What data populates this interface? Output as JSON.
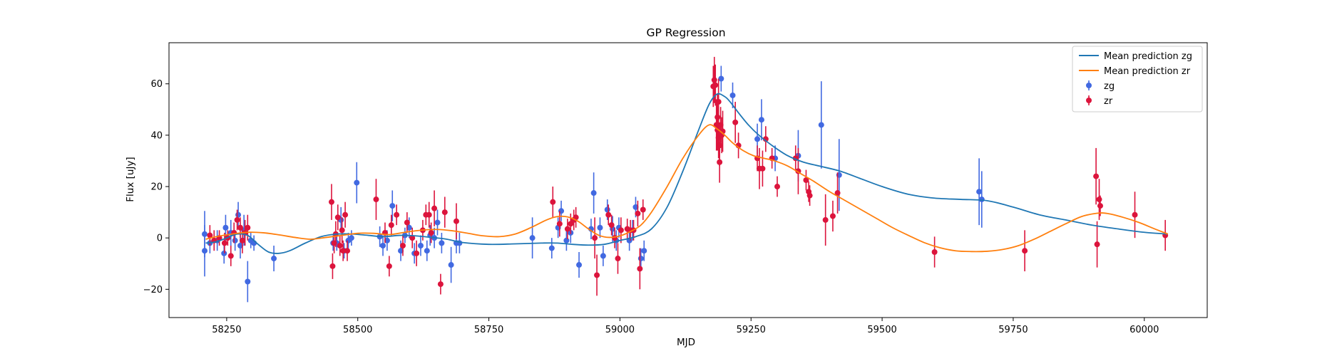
{
  "chart_data": {
    "type": "scatter",
    "title": "GP Regression",
    "xlabel": "MJD",
    "ylabel": "Flux [uJy]",
    "xlim": [
      58140,
      60120
    ],
    "ylim": [
      -31,
      76
    ],
    "xticks": [
      58250,
      58500,
      58750,
      59000,
      59250,
      59500,
      59750,
      60000
    ],
    "yticks": [
      -20,
      0,
      20,
      40,
      60
    ],
    "grid": false,
    "legend_position": "top-right",
    "legend": [
      {
        "label": "Mean prediction zg",
        "kind": "line",
        "color": "#1f77b4"
      },
      {
        "label": "Mean prediction zr",
        "kind": "line",
        "color": "#ff7f0e"
      },
      {
        "label": "zg",
        "kind": "errorbar",
        "color": "#4169e1"
      },
      {
        "label": "zr",
        "kind": "errorbar",
        "color": "#dc143c"
      }
    ],
    "lines": [
      {
        "name": "Mean prediction zg",
        "color": "#1f77b4",
        "x": [
          58210,
          58230,
          58250,
          58270,
          58290,
          58310,
          58330,
          58350,
          58370,
          58400,
          58430,
          58460,
          58490,
          58520,
          58550,
          58580,
          58610,
          58640,
          58670,
          58700,
          58750,
          58800,
          58850,
          58880,
          58910,
          58940,
          58970,
          59000,
          59030,
          59060,
          59090,
          59120,
          59150,
          59170,
          59185,
          59200,
          59210,
          59225,
          59245,
          59265,
          59290,
          59320,
          59350,
          59380,
          59420,
          59460,
          59500,
          59550,
          59600,
          59650,
          59700,
          59750,
          59800,
          59850,
          59900,
          59950,
          60000,
          60045
        ],
        "y": [
          -2,
          -1.5,
          0,
          1.5,
          1,
          -2.5,
          -5.5,
          -6,
          -5,
          -2,
          0.5,
          1.5,
          1.5,
          1,
          0.5,
          1,
          0.8,
          0.2,
          -0.5,
          -1.8,
          -2.5,
          -2.3,
          -2,
          -2,
          -2.5,
          -2.8,
          -2.5,
          -1,
          0.5,
          3.5,
          12,
          26,
          42,
          52,
          56,
          55,
          53,
          49,
          44,
          40,
          36,
          32,
          29.5,
          28,
          26,
          23,
          20,
          17,
          15.5,
          15,
          14.5,
          12,
          9,
          7,
          5,
          3.5,
          2.2,
          1.5
        ]
      },
      {
        "name": "Mean prediction zr",
        "color": "#ff7f0e",
        "x": [
          58210,
          58230,
          58260,
          58290,
          58320,
          58350,
          58380,
          58410,
          58440,
          58470,
          58500,
          58530,
          58560,
          58590,
          58620,
          58650,
          58680,
          58710,
          58740,
          58770,
          58800,
          58830,
          58860,
          58880,
          58900,
          58920,
          58940,
          58960,
          58980,
          59000,
          59020,
          59040,
          59060,
          59090,
          59120,
          59150,
          59170,
          59185,
          59200,
          59215,
          59235,
          59255,
          59275,
          59295,
          59320,
          59345,
          59370,
          59400,
          59430,
          59460,
          59490,
          59520,
          59550,
          59580,
          59610,
          59640,
          59670,
          59700,
          59730,
          59760,
          59790,
          59820,
          59850,
          59880,
          59910,
          59930,
          59960,
          59990,
          60020,
          60045
        ],
        "y": [
          -0.5,
          0.5,
          1.5,
          2.2,
          2,
          1.2,
          0.2,
          -0.5,
          0.2,
          1,
          1.8,
          1.8,
          1.3,
          2.2,
          3,
          3.3,
          2.8,
          1.8,
          0.8,
          0.5,
          1.5,
          4,
          7,
          8.3,
          8.2,
          6.5,
          3.5,
          1,
          0.2,
          0.8,
          2.5,
          5,
          10,
          20,
          31,
          40,
          44,
          42.5,
          40,
          37,
          34,
          32,
          31,
          30,
          28,
          25,
          22,
          18,
          14.5,
          11,
          7.5,
          4,
          1,
          -1.8,
          -3.8,
          -5,
          -5.3,
          -5.2,
          -4.5,
          -3,
          -0.5,
          2.5,
          5.5,
          8.3,
          9.6,
          9.5,
          8,
          6,
          3.5,
          1.5
        ]
      }
    ],
    "series": [
      {
        "name": "zg",
        "color": "#4169e1",
        "points": [
          [
            58208,
            1.5,
            9
          ],
          [
            58208,
            -5,
            10
          ],
          [
            58218,
            -2,
            4
          ],
          [
            58232,
            -1,
            4
          ],
          [
            58245,
            -6,
            4
          ],
          [
            58248,
            4,
            5
          ],
          [
            58258,
            2,
            5
          ],
          [
            58266,
            -1,
            4
          ],
          [
            58272,
            9,
            5
          ],
          [
            58276,
            -3,
            5
          ],
          [
            58283,
            3,
            6
          ],
          [
            58290,
            -17,
            8
          ],
          [
            58296,
            -1,
            3
          ],
          [
            58302,
            -2,
            3
          ],
          [
            58340,
            -8,
            5
          ],
          [
            58453,
            -2,
            3
          ],
          [
            58460,
            -2,
            3
          ],
          [
            58468,
            7,
            5
          ],
          [
            58474,
            -5,
            3
          ],
          [
            58482,
            -1,
            3
          ],
          [
            58488,
            0,
            3
          ],
          [
            58498,
            21.5,
            8
          ],
          [
            58542,
            0.5,
            4
          ],
          [
            58548,
            -3,
            4
          ],
          [
            58556,
            -1,
            4
          ],
          [
            58566,
            12.5,
            6
          ],
          [
            58582,
            -5,
            4
          ],
          [
            58590,
            1,
            3
          ],
          [
            58598,
            4,
            4
          ],
          [
            58608,
            -6,
            4
          ],
          [
            58620,
            -3,
            4
          ],
          [
            58632,
            -5,
            4
          ],
          [
            58638,
            1,
            4
          ],
          [
            58646,
            0,
            4
          ],
          [
            58652,
            6,
            5
          ],
          [
            58660,
            -2,
            4
          ],
          [
            58678,
            -10.5,
            7
          ],
          [
            58688,
            -2,
            4
          ],
          [
            58694,
            -2,
            4
          ],
          [
            58833,
            0,
            8
          ],
          [
            58870,
            -4,
            4
          ],
          [
            58882,
            4,
            4
          ],
          [
            58888,
            10.5,
            4
          ],
          [
            58898,
            -1,
            4
          ],
          [
            58906,
            2,
            4
          ],
          [
            58922,
            -10.5,
            5
          ],
          [
            58945,
            3.5,
            4
          ],
          [
            58950,
            17.5,
            8
          ],
          [
            58962,
            4,
            4
          ],
          [
            58968,
            -7,
            4
          ],
          [
            58976,
            11,
            4
          ],
          [
            58986,
            3.5,
            5
          ],
          [
            58993,
            -1,
            4
          ],
          [
            58998,
            4,
            4
          ],
          [
            59018,
            -1,
            4
          ],
          [
            59024,
            3,
            4
          ],
          [
            59030,
            12,
            4
          ],
          [
            59040,
            -8,
            4
          ],
          [
            59046,
            -5,
            4
          ],
          [
            59193,
            62,
            5
          ],
          [
            59215,
            55.5,
            5
          ],
          [
            59262,
            38.5,
            6
          ],
          [
            59270,
            46,
            8
          ],
          [
            59296,
            31,
            5
          ],
          [
            59340,
            32,
            10
          ],
          [
            59384,
            44,
            17
          ],
          [
            59418,
            24.5,
            14
          ],
          [
            59685,
            18,
            13
          ],
          [
            59690,
            15,
            11
          ]
        ]
      },
      {
        "name": "zr",
        "color": "#dc143c",
        "points": [
          [
            58218,
            1,
            4
          ],
          [
            58226,
            -1,
            4
          ],
          [
            58236,
            0,
            3
          ],
          [
            58246,
            -2,
            4
          ],
          [
            58252,
            0,
            3
          ],
          [
            58258,
            -7,
            4
          ],
          [
            58264,
            2,
            4
          ],
          [
            58270,
            7,
            4
          ],
          [
            58276,
            4,
            4
          ],
          [
            58280,
            -1,
            5
          ],
          [
            58285,
            2,
            5
          ],
          [
            58290,
            4,
            5
          ],
          [
            58450,
            14,
            7
          ],
          [
            58452,
            -11,
            5
          ],
          [
            58455,
            -2,
            4
          ],
          [
            58458,
            1.5,
            5
          ],
          [
            58462,
            8,
            5
          ],
          [
            58466,
            -3,
            4
          ],
          [
            58470,
            3,
            5
          ],
          [
            58472,
            -5,
            4
          ],
          [
            58476,
            9,
            5
          ],
          [
            58480,
            -5,
            4
          ],
          [
            58535,
            15,
            8
          ],
          [
            58552,
            2,
            4
          ],
          [
            58560,
            -11,
            4
          ],
          [
            58564,
            5,
            4
          ],
          [
            58574,
            9,
            4
          ],
          [
            58586,
            -3,
            4
          ],
          [
            58594,
            6,
            4
          ],
          [
            58604,
            0,
            4
          ],
          [
            58612,
            -6,
            5
          ],
          [
            58624,
            3,
            4
          ],
          [
            58630,
            9,
            4
          ],
          [
            58636,
            9,
            5
          ],
          [
            58640,
            2,
            4
          ],
          [
            58646,
            11.5,
            7
          ],
          [
            58658,
            -18,
            4
          ],
          [
            58666,
            10,
            6
          ],
          [
            58688,
            6.5,
            7
          ],
          [
            58872,
            14,
            6
          ],
          [
            58885,
            5.5,
            5
          ],
          [
            58900,
            3.5,
            4
          ],
          [
            58906,
            5.5,
            4
          ],
          [
            58912,
            7,
            4
          ],
          [
            58916,
            8,
            4
          ],
          [
            58952,
            0,
            8
          ],
          [
            58956,
            -14.5,
            8
          ],
          [
            58978,
            9,
            4
          ],
          [
            58984,
            5,
            4
          ],
          [
            58990,
            0,
            4
          ],
          [
            58996,
            -8,
            6
          ],
          [
            59002,
            3,
            5
          ],
          [
            59014,
            3.5,
            4
          ],
          [
            59020,
            3,
            4
          ],
          [
            59026,
            3,
            4
          ],
          [
            59034,
            9.5,
            5
          ],
          [
            59038,
            -12,
            8
          ],
          [
            59044,
            11,
            4
          ],
          [
            59178,
            59,
            8
          ],
          [
            59180,
            61.5,
            9
          ],
          [
            59182,
            59.5,
            8
          ],
          [
            59184,
            44,
            10
          ],
          [
            59186,
            47,
            9
          ],
          [
            59186,
            42,
            8
          ],
          [
            59188,
            53,
            9
          ],
          [
            59188,
            39,
            8
          ],
          [
            59190,
            36,
            8
          ],
          [
            59190,
            29.5,
            8
          ],
          [
            59192,
            44,
            7
          ],
          [
            59194,
            40,
            7
          ],
          [
            59196,
            41.5,
            8
          ],
          [
            59220,
            45,
            8
          ],
          [
            59226,
            36,
            5
          ],
          [
            59262,
            31,
            5
          ],
          [
            59266,
            27,
            8
          ],
          [
            59272,
            27,
            7
          ],
          [
            59278,
            38.5,
            5
          ],
          [
            59290,
            31,
            4
          ],
          [
            59300,
            20,
            4
          ],
          [
            59335,
            31,
            5
          ],
          [
            59340,
            26,
            9
          ],
          [
            59355,
            22.5,
            4
          ],
          [
            59360,
            18,
            4
          ],
          [
            59362,
            16.5,
            4
          ],
          [
            59392,
            7,
            10
          ],
          [
            59406,
            8.5,
            6
          ],
          [
            59415,
            17.5,
            8
          ],
          [
            59600,
            -5.5,
            6
          ],
          [
            59772,
            -5,
            8
          ],
          [
            59908,
            24,
            11
          ],
          [
            59910,
            -2.5,
            9
          ],
          [
            59914,
            15,
            8
          ],
          [
            59916,
            12.5,
            4
          ],
          [
            59982,
            9,
            9
          ],
          [
            60040,
            1,
            6
          ]
        ]
      }
    ]
  }
}
